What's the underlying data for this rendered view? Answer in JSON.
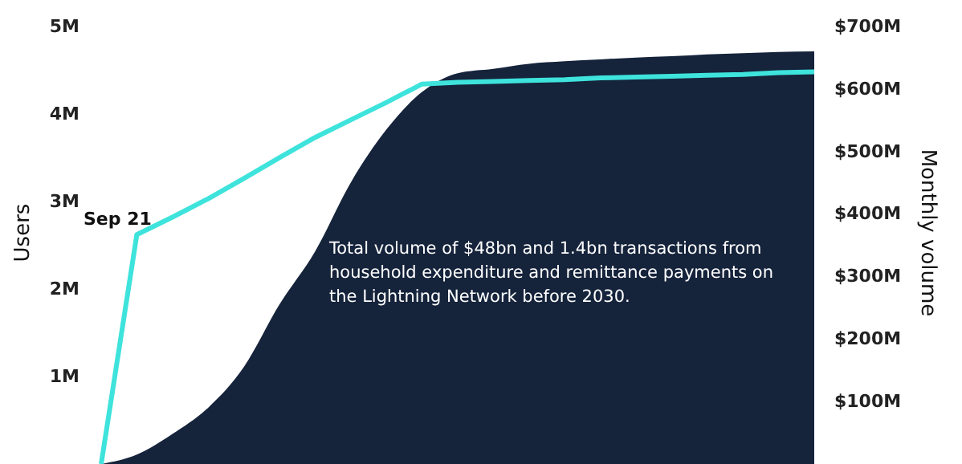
{
  "chart_data": {
    "type": "area",
    "categories": [
      null,
      null,
      null,
      null,
      null,
      null,
      null,
      null,
      null,
      null,
      null,
      null,
      null,
      null,
      null,
      null,
      null,
      null,
      null,
      null,
      null
    ],
    "series": [
      {
        "axis": "y2",
        "color": "#15233b",
        "values": [
          0,
          15,
          48,
          90,
          155,
          255,
          340,
          450,
          535,
          595,
          625,
          632,
          640,
          644,
          647,
          650,
          652,
          655,
          657,
          659,
          660
        ]
      },
      {
        "type": "line",
        "color": "#3ee3dc",
        "values": [
          0,
          2.62,
          2.82,
          3.03,
          3.26,
          3.5,
          3.73,
          3.93,
          4.13,
          4.34,
          4.36,
          4.37,
          4.38,
          4.39,
          4.41,
          4.42,
          4.43,
          4.44,
          4.45,
          4.47,
          4.48
        ]
      }
    ],
    "ylabel": "Users",
    "y2label": "Monthly volume",
    "ylim": [
      0,
      5.3
    ],
    "yticks": [
      {
        "value": 1,
        "label": "1M"
      },
      {
        "value": 2,
        "label": "2M"
      },
      {
        "value": 3,
        "label": "3M"
      },
      {
        "value": 4,
        "label": "4M"
      },
      {
        "value": 5,
        "label": "5M"
      }
    ],
    "y2lim": [
      0,
      742
    ],
    "y2ticks": [
      {
        "value": 100,
        "label": "$100M"
      },
      {
        "value": 200,
        "label": "$200M"
      },
      {
        "value": 300,
        "label": "$300M"
      },
      {
        "value": 400,
        "label": "$400M"
      },
      {
        "value": 500,
        "label": "$500M"
      },
      {
        "value": 600,
        "label": "$600M"
      },
      {
        "value": 700,
        "label": "$700M"
      }
    ],
    "tick_labels": "y",
    "grid": false,
    "annotations": [
      "Sep 21",
      "Total volume of $48bn and 1.4bn transactions from\nhousehold expenditure and remittance payments on\nthe Lightning Network before 2030."
    ]
  }
}
